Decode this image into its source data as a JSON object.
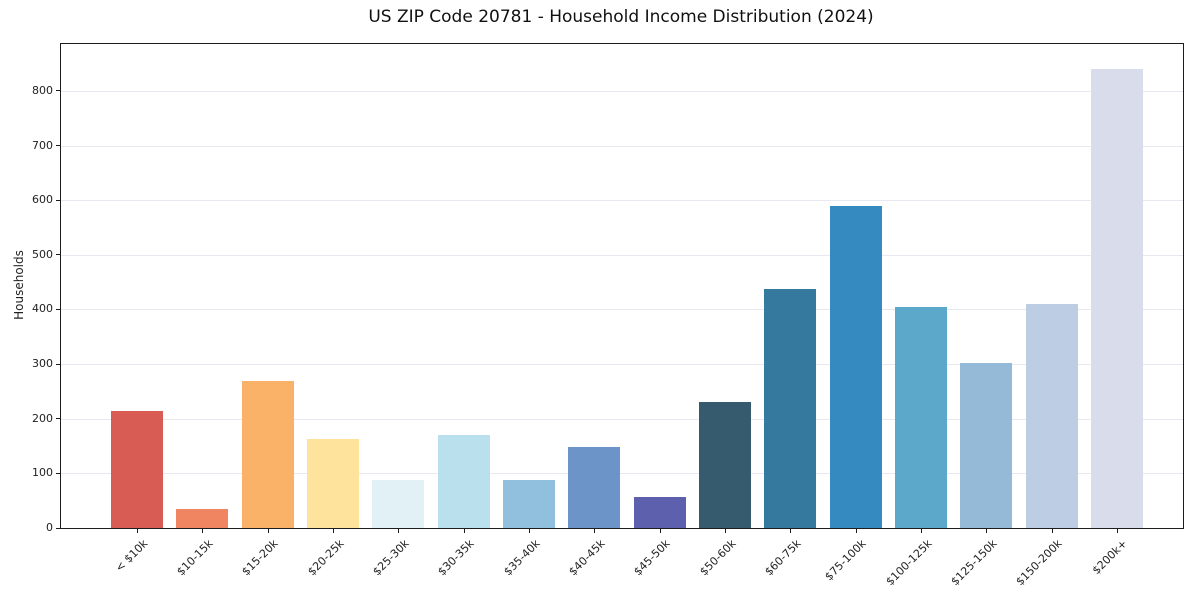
{
  "chart_data": {
    "type": "bar",
    "title": "US ZIP Code 20781 - Household Income Distribution (2024)",
    "xlabel": "",
    "ylabel": "Households",
    "categories": [
      "< $10k",
      "$10-15k",
      "$15-20k",
      "$20-25k",
      "$25-30k",
      "$30-35k",
      "$35-40k",
      "$40-45k",
      "$45-50k",
      "$50-60k",
      "$60-75k",
      "$75-100k",
      "$100-125k",
      "$125-150k",
      "$150-200k",
      "$200k+"
    ],
    "values": [
      215,
      35,
      270,
      163,
      87,
      170,
      87,
      148,
      57,
      230,
      438,
      590,
      405,
      302,
      410,
      840
    ],
    "bar_colors": [
      "#d85c53",
      "#ef8661",
      "#f9b268",
      "#fde39c",
      "#e2f1f6",
      "#bae0ed",
      "#90c0dd",
      "#6d94c8",
      "#5c60ad",
      "#365a6e",
      "#357a9e",
      "#358bc0",
      "#5ba8ca",
      "#94bad8",
      "#bccde4",
      "#d9dcea"
    ],
    "yticks": [
      0,
      100,
      200,
      300,
      400,
      500,
      600,
      700,
      800
    ],
    "ylim": [
      0,
      886
    ],
    "grid": "horizontal-only",
    "legend": "none",
    "colors": {
      "background": "#ffffff",
      "grid": "#e8e8f1",
      "spine": "#1c1c1c",
      "text": "#222222"
    }
  }
}
